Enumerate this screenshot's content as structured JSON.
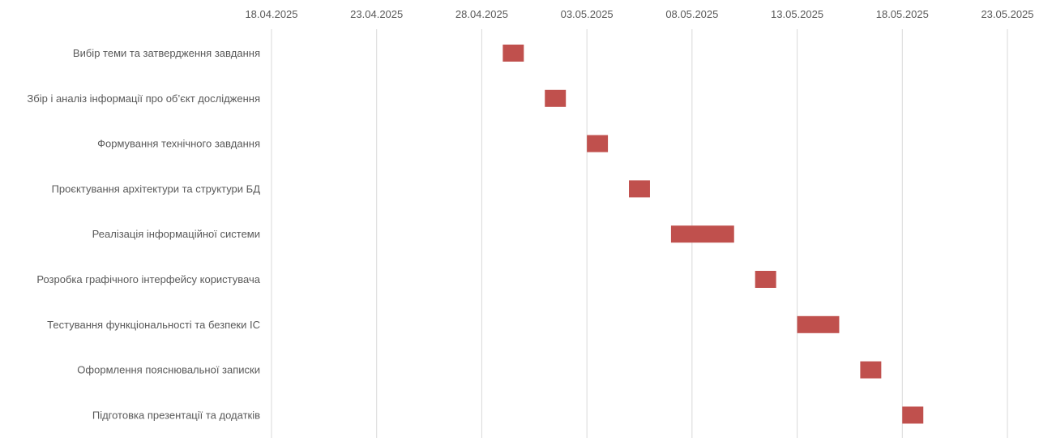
{
  "chart_data": {
    "type": "bar",
    "orientation": "horizontal",
    "title": "",
    "xlabel": "",
    "ylabel": "",
    "grid": true,
    "legend": "none",
    "bar_color": "#c0504d",
    "grid_color": "#d9d9d9",
    "label_color": "#595959",
    "x_ticks": [
      "18.04.2025",
      "23.04.2025",
      "28.04.2025",
      "03.05.2025",
      "08.05.2025",
      "13.05.2025",
      "18.05.2025",
      "23.05.2025"
    ],
    "xlim": [
      "2025-04-18",
      "2025-05-23"
    ],
    "tasks": [
      {
        "name": "Вибір теми та затвердження завдання",
        "start": "2025-04-29",
        "end": "2025-04-30"
      },
      {
        "name": "Збір і аналіз інформації про об’єкт дослідження",
        "start": "2025-05-01",
        "end": "2025-05-02"
      },
      {
        "name": "Формування технічного завдання",
        "start": "2025-05-03",
        "end": "2025-05-04"
      },
      {
        "name": "Проєктування архітектури та структури БД",
        "start": "2025-05-05",
        "end": "2025-05-06"
      },
      {
        "name": "Реалізація інформаційної системи",
        "start": "2025-05-07",
        "end": "2025-05-10"
      },
      {
        "name": "Розробка графічного інтерфейсу користувача",
        "start": "2025-05-11",
        "end": "2025-05-12"
      },
      {
        "name": "Тестування функціональності та безпеки ІС",
        "start": "2025-05-13",
        "end": "2025-05-15"
      },
      {
        "name": "Оформлення пояснювальної записки",
        "start": "2025-05-16",
        "end": "2025-05-17"
      },
      {
        "name": "Підготовка презентації та додатків",
        "start": "2025-05-18",
        "end": "2025-05-19"
      }
    ]
  }
}
